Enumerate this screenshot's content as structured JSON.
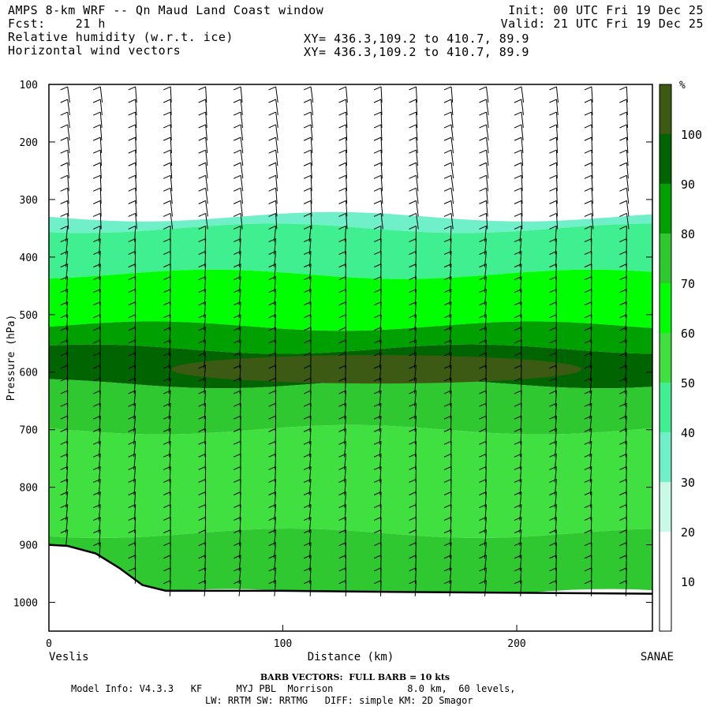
{
  "header": {
    "title": "AMPS 8-km WRF -- Qn Maud Land Coast window",
    "fcst": "Fcst:    21 h",
    "field1": "Relative humidity (w.r.t. ice)",
    "field2": "Horizontal wind vectors",
    "xy1": "XY= 436.3,109.2 to 410.7, 89.9",
    "xy2": "XY= 436.3,109.2 to 410.7, 89.9",
    "init": "Init: 00 UTC Fri 19 Dec 25",
    "valid": "Valid: 21 UTC Fri 19 Dec 25"
  },
  "chart_data": {
    "type": "heatmap",
    "title": "Relative humidity (w.r.t. ice)",
    "xlabel": "Distance (km)",
    "ylabel": "Pressure (hPa)",
    "xlim": [
      0,
      258
    ],
    "ylim": [
      1050,
      100
    ],
    "x_ticks": [
      0,
      100,
      200
    ],
    "y_ticks": [
      100,
      200,
      300,
      400,
      500,
      600,
      700,
      800,
      900,
      1000
    ],
    "x_start_label": "Veslis",
    "x_end_label": "SANAE",
    "colorbar": {
      "unit": "%",
      "levels": [
        10,
        20,
        30,
        40,
        50,
        60,
        70,
        80,
        90,
        100
      ],
      "colors": [
        "#ffffff",
        "#ffffff",
        "#ffffff",
        "#c8fae6",
        "#6ff0c8",
        "#40f090",
        "#40e040",
        "#00ff00",
        "#30c830",
        "#00a000",
        "#006400",
        "#3c5a14"
      ]
    },
    "terrain_pressure": [
      [
        0,
        900
      ],
      [
        8,
        902
      ],
      [
        20,
        915
      ],
      [
        30,
        940
      ],
      [
        40,
        970
      ],
      [
        50,
        980
      ],
      [
        100,
        980
      ],
      [
        150,
        982
      ],
      [
        258,
        985
      ]
    ],
    "rh_bands": [
      {
        "top": 330,
        "bottom": 350,
        "value": 35
      },
      {
        "top": 350,
        "bottom": 430,
        "value": 45
      },
      {
        "top": 430,
        "bottom": 520,
        "value": 65
      },
      {
        "top": 520,
        "bottom": 560,
        "value": 85
      },
      {
        "top": 560,
        "bottom": 620,
        "value": 95
      },
      {
        "top": 620,
        "bottom": 700,
        "value": 75
      },
      {
        "top": 700,
        "bottom": 880,
        "value": 55
      },
      {
        "top": 880,
        "bottom": 985,
        "value": 75
      }
    ],
    "wind_columns_km": [
      8,
      22,
      37,
      52,
      67,
      82,
      97,
      112,
      127,
      142,
      157,
      172,
      187,
      202,
      217,
      232,
      247
    ],
    "barb_note": "BARB VECTORS:  FULL BARB = 10 kts"
  },
  "footer": {
    "barb": "BARB VECTORS:  FULL BARB = 10 kts",
    "model": "Model Info: V4.3.3   KF      MYJ PBL  Morrison             8.0 km,  60 levels,",
    "model2": "LW: RRTM SW: RRTMG   DIFF: simple KM: 2D Smagor"
  }
}
